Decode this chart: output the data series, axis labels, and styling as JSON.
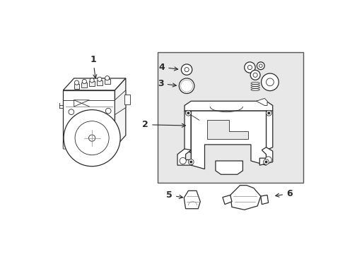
{
  "bg_color": "#ffffff",
  "line_color": "#2a2a2a",
  "light_line": "#888888",
  "box_bg": "#e8e8e8",
  "fig_width": 4.89,
  "fig_height": 3.6,
  "dpi": 100
}
